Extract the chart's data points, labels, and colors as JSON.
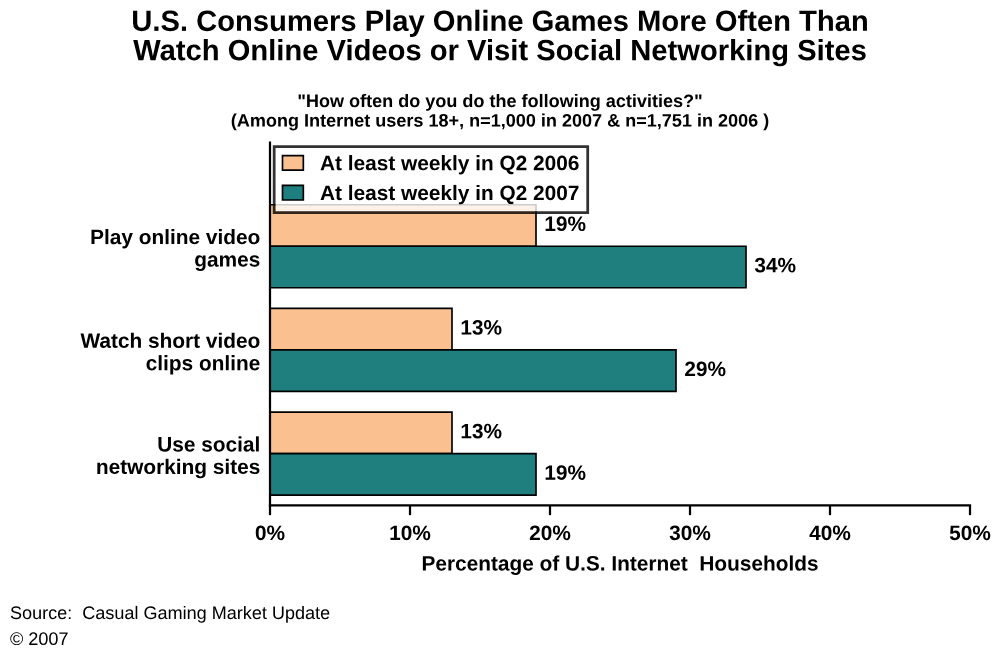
{
  "chart_data": {
    "type": "bar",
    "orientation": "horizontal",
    "title": "U.S. Consumers Play Online Games More Often Than\nWatch Online Videos or Visit Social Networking Sites",
    "subtitle": "\"How often do you do the following activities?\"\n(Among Internet users 18+, n=1,000 in 2007 & n=1,751 in 2006 )",
    "xlabel": "Percentage of U.S. Internet  Households",
    "categories": [
      "Play online video\ngames",
      "Watch short video\nclips online",
      "Use social\nnetworking sites"
    ],
    "series": [
      {
        "name": "At least weekly in Q2 2006",
        "color": "#fac090",
        "values": [
          19,
          13,
          13
        ],
        "value_labels": [
          "19%",
          "13%",
          "13%"
        ]
      },
      {
        "name": "At least weekly in Q2 2007",
        "color": "#1f7f7f",
        "values": [
          34,
          29,
          19
        ],
        "value_labels": [
          "34%",
          "29%",
          "19%"
        ]
      }
    ],
    "xlim": [
      0,
      50
    ],
    "xticks": [
      {
        "value": 0,
        "label": "0%"
      },
      {
        "value": 10,
        "label": "10%"
      },
      {
        "value": 20,
        "label": "20%"
      },
      {
        "value": 30,
        "label": "30%"
      },
      {
        "value": 40,
        "label": "40%"
      },
      {
        "value": 50,
        "label": "50%"
      }
    ],
    "grid": false,
    "legend": "top left",
    "annotations": [
      "Source:  Casual Gaming Market Update",
      "© 2007"
    ]
  }
}
